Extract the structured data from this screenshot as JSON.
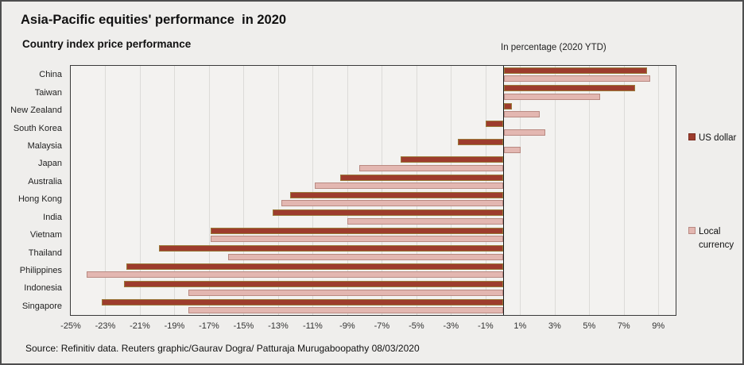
{
  "header": {
    "title": "Asia-Pacific equities' performance  in 2020",
    "subtitle": "Country index price performance",
    "axis_note": "In percentage (2020 YTD)"
  },
  "legend": {
    "us_dollar_label": "US dollar",
    "local_currency_label": "Local currency"
  },
  "footer": {
    "source": "Source: Refinitiv data. Reuters graphic/Gaurav Dogra/ Patturaja Murugaboopathy 08/03/2020"
  },
  "colors": {
    "us_dollar_fill": "#9d3c2d",
    "us_dollar_border": "#9a7a3a",
    "local_fill": "#e3b7b1",
    "local_border": "#b98a82",
    "plot_bg": "#f3f2f0",
    "gridline": "#dcdbd8",
    "zero_line": "#1a1a1a"
  },
  "chart_data": {
    "type": "bar",
    "orientation": "horizontal",
    "title": "Asia-Pacific equities' performance  in 2020",
    "subtitle": "Country index price performance",
    "xlabel": "In percentage (2020 YTD)",
    "categories": [
      "China",
      "Taiwan",
      "New Zealand",
      "South Korea",
      "Malaysia",
      "Japan",
      "Australia",
      "Hong Kong",
      "India",
      "Vietnam",
      "Thailand",
      "Philippines",
      "Indonesia",
      "Singapore"
    ],
    "series": [
      {
        "name": "US dollar",
        "values": [
          8.3,
          7.6,
          0.5,
          -1.0,
          -2.6,
          -5.9,
          -9.4,
          -12.3,
          -13.3,
          -16.9,
          -19.9,
          -21.8,
          -21.9,
          -23.2
        ]
      },
      {
        "name": "Local currency",
        "values": [
          8.5,
          5.6,
          2.1,
          2.4,
          1.0,
          -8.3,
          -10.9,
          -12.8,
          -9.0,
          -16.9,
          -15.9,
          -24.1,
          -18.2,
          -18.2
        ]
      }
    ],
    "xlim": [
      -25,
      10
    ],
    "xticks": [
      -25,
      -23,
      -21,
      -19,
      -17,
      -15,
      -13,
      -11,
      -9,
      -7,
      -5,
      -3,
      -1,
      1,
      3,
      5,
      7,
      9
    ],
    "xtick_suffix": "%",
    "grid": true,
    "legend_position": "right"
  }
}
